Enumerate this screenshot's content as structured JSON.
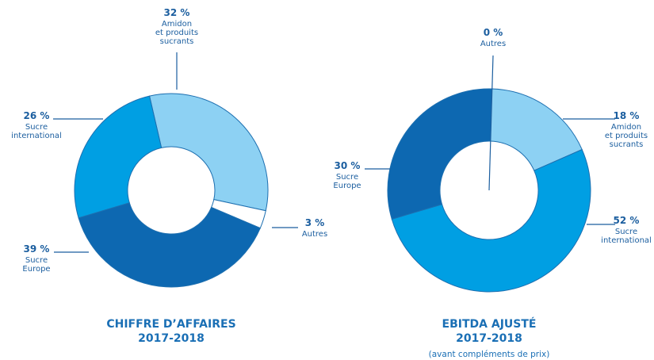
{
  "chart_data": [
    {
      "type": "donut",
      "title": "CHIFFRE D’AFFAIRES",
      "subtitle": "2017-2018",
      "categories": [
        "Amidon\net produits\nsucrants",
        "Autres",
        "Sucre\nEurope",
        "Sucre\ninternational"
      ],
      "values": [
        32,
        3,
        39,
        26
      ],
      "value_labels": [
        "32 %",
        "3 %",
        "39 %",
        "26 %"
      ],
      "colors": [
        "#8dd1f3",
        "#ffffff",
        "#0d68b1",
        "#009fe3"
      ]
    },
    {
      "type": "donut",
      "title": "EBITDA AJUSTÉ",
      "subtitle": "2017-2018",
      "note": "(avant compléments de prix)",
      "categories": [
        "Autres",
        "Amidon\net produits\nsucrants",
        "Sucre\ninternational",
        "Sucre\nEurope"
      ],
      "values": [
        0,
        18,
        52,
        30
      ],
      "value_labels": [
        "0 %",
        "18 %",
        "52 %",
        "30 %"
      ],
      "colors": [
        "#ffffff",
        "#8dd1f3",
        "#009fe3",
        "#0d68b1"
      ]
    }
  ]
}
